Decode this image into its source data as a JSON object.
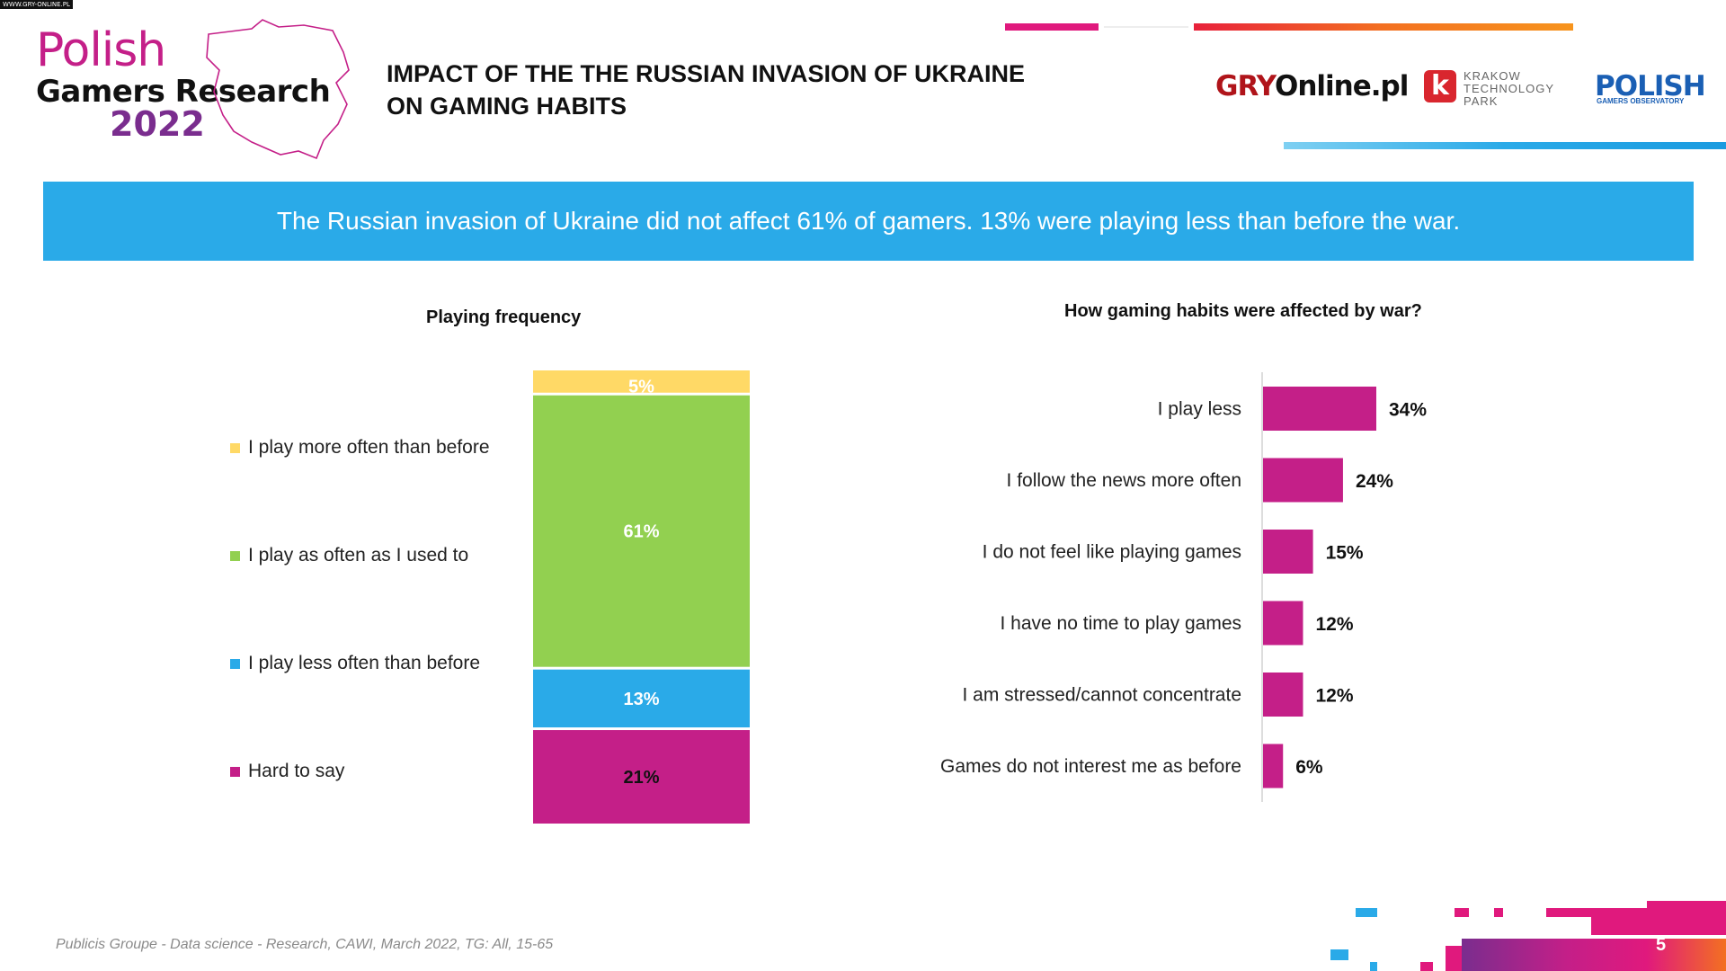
{
  "source_tag": "WWW.GRY-ONLINE.PL",
  "header": {
    "logo_line1": "Polish",
    "logo_line2": "Gamers Research",
    "logo_line3": "2022",
    "title_line1": "IMPACT OF THE THE RUSSIAN INVASION OF UKRAINE",
    "title_line2": "ON GAMING HABITS",
    "partner_gry_part1": "GRY",
    "partner_gry_part2": "Online.pl",
    "partner_ktp_letter": "k",
    "partner_ktp_line1": "KRAKOW",
    "partner_ktp_line2": "TECHNOLOGY",
    "partner_ktp_line3": "PARK",
    "partner_pgo_title": "POLISH",
    "partner_pgo_sub": "GAMERS OBSERVATORY"
  },
  "banner": {
    "text": "The Russian invasion of Ukraine did not affect 61% of gamers. 13% were playing less than before the war."
  },
  "colors": {
    "magenta": "#c41f88",
    "green": "#92d050",
    "blue": "#2aaae8",
    "yellow": "#ffd966",
    "purple": "#7a2d8e",
    "orange": "#f37021"
  },
  "chart_data": [
    {
      "type": "bar",
      "stacked": true,
      "title": "Playing frequency",
      "series": [
        {
          "name": "I play more often than before",
          "value": 5,
          "label": "5%",
          "color": "#ffd966"
        },
        {
          "name": "I play as often as  I used to",
          "value": 61,
          "label": "61%",
          "color": "#92d050"
        },
        {
          "name": "I play less often than before",
          "value": 13,
          "label": "13%",
          "color": "#2aaae8"
        },
        {
          "name": "Hard to say",
          "value": 21,
          "label": "21%",
          "color": "#c41f88"
        }
      ]
    },
    {
      "type": "bar",
      "orientation": "horizontal",
      "title": "How gaming habits were affected by war?",
      "categories": [
        "I play less",
        "I follow the news more often",
        "I do not feel like playing games",
        "I have no time to play games",
        "I am stressed/cannot concentrate",
        "Games do not interest me as before"
      ],
      "values": [
        34,
        24,
        15,
        12,
        12,
        6
      ],
      "labels": [
        "34%",
        "24%",
        "15%",
        "12%",
        "12%",
        "6%"
      ],
      "color": "#c41f88"
    }
  ],
  "footer": {
    "note": "Publicis Groupe - Data science - Research, CAWI, March 2022, TG: All, 15-65",
    "page_number": "5"
  }
}
